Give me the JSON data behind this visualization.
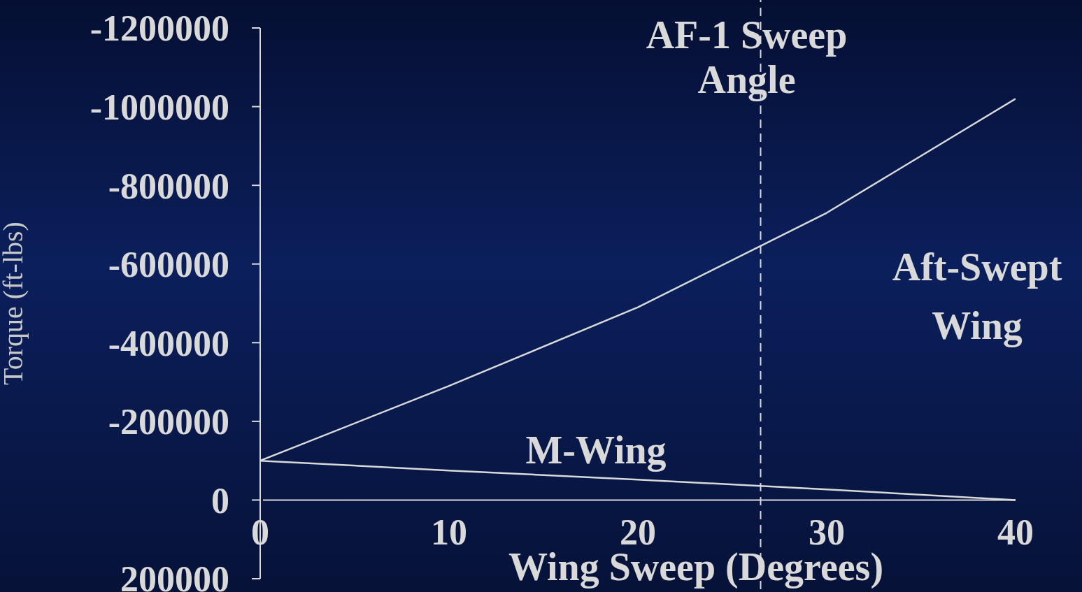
{
  "chart_data": {
    "type": "line",
    "xlabel": "Wing Sweep (Degrees)",
    "ylabel": "Torque (ft-lbs)",
    "x": [
      0,
      10,
      20,
      30,
      40
    ],
    "series": [
      {
        "name": "Aft-Swept Wing",
        "color": "#d9d9d9",
        "values": [
          -100000,
          -290000,
          -490000,
          -730000,
          -1020000
        ]
      },
      {
        "name": "M-Wing",
        "color": "#d9d9d9",
        "values": [
          -100000,
          -75000,
          -52000,
          -27000,
          0
        ]
      }
    ],
    "xlim": [
      0,
      40
    ],
    "xticks": [
      0,
      10,
      20,
      30,
      40
    ],
    "ylim": [
      200000,
      -1200000
    ],
    "yticks": [
      200000,
      0,
      -200000,
      -400000,
      -600000,
      -800000,
      -1000000,
      -1200000
    ],
    "ref_lines": [
      {
        "axis": "x",
        "value": 26.5,
        "label": "AF-1 Sweep Angle",
        "line_style": "dashed",
        "color": "#d9d9d9"
      }
    ],
    "grid": false,
    "marker": "none",
    "line_style": "solid"
  }
}
